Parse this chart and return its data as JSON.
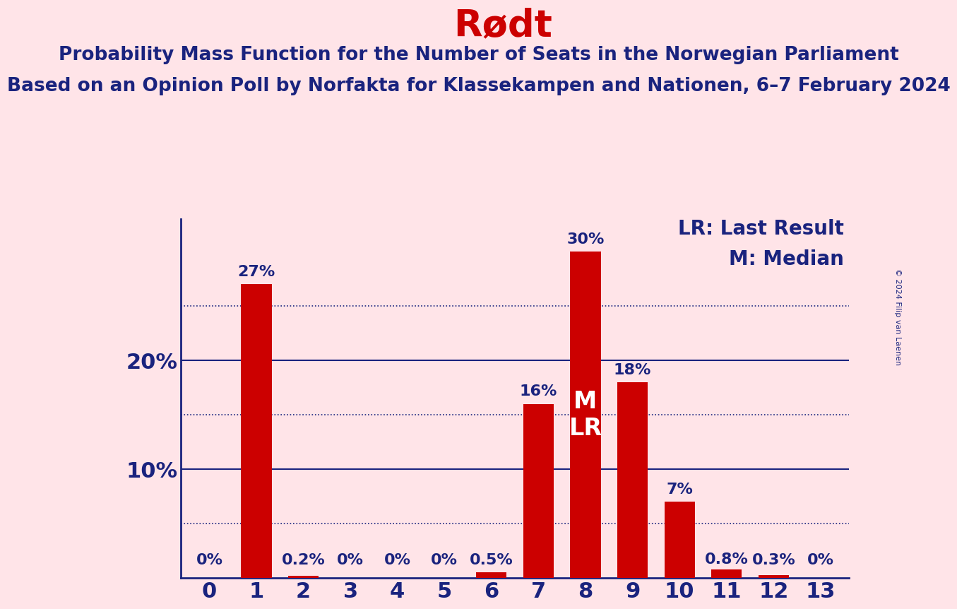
{
  "title": "Rødt",
  "subtitle1": "Probability Mass Function for the Number of Seats in the Norwegian Parliament",
  "subtitle2": "Based on an Opinion Poll by Norfakta for Klassekampen and Nationen, 6–7 February 2024",
  "copyright": "© 2024 Filip van Laenen",
  "categories": [
    0,
    1,
    2,
    3,
    4,
    5,
    6,
    7,
    8,
    9,
    10,
    11,
    12,
    13
  ],
  "values": [
    0.0,
    27.0,
    0.2,
    0.0,
    0.0,
    0.0,
    0.5,
    16.0,
    30.0,
    18.0,
    7.0,
    0.8,
    0.3,
    0.0
  ],
  "labels": [
    "0%",
    "27%",
    "0.2%",
    "0%",
    "0%",
    "0%",
    "0.5%",
    "16%",
    "30%",
    "18%",
    "7%",
    "0.8%",
    "0.3%",
    "0%"
  ],
  "bar_color": "#CC0000",
  "background_color": "#FFE4E8",
  "title_color": "#CC0000",
  "subtitle_color": "#1A237E",
  "label_color": "#1A237E",
  "axis_color": "#1A237E",
  "grid_color": "#1A237E",
  "median_seat": 8,
  "last_result_seat": 8,
  "legend_lr": "LR: Last Result",
  "legend_m": "M: Median",
  "ylim": [
    0,
    33
  ],
  "grid_solid_values": [
    10,
    20
  ],
  "grid_dotted_values": [
    5,
    15,
    25
  ],
  "bar_width": 0.65,
  "title_fontsize": 38,
  "subtitle_fontsize": 19,
  "label_fontsize": 16,
  "axis_label_fontsize": 22,
  "legend_fontsize": 20,
  "copyright_fontsize": 8,
  "ml_fontsize": 24
}
